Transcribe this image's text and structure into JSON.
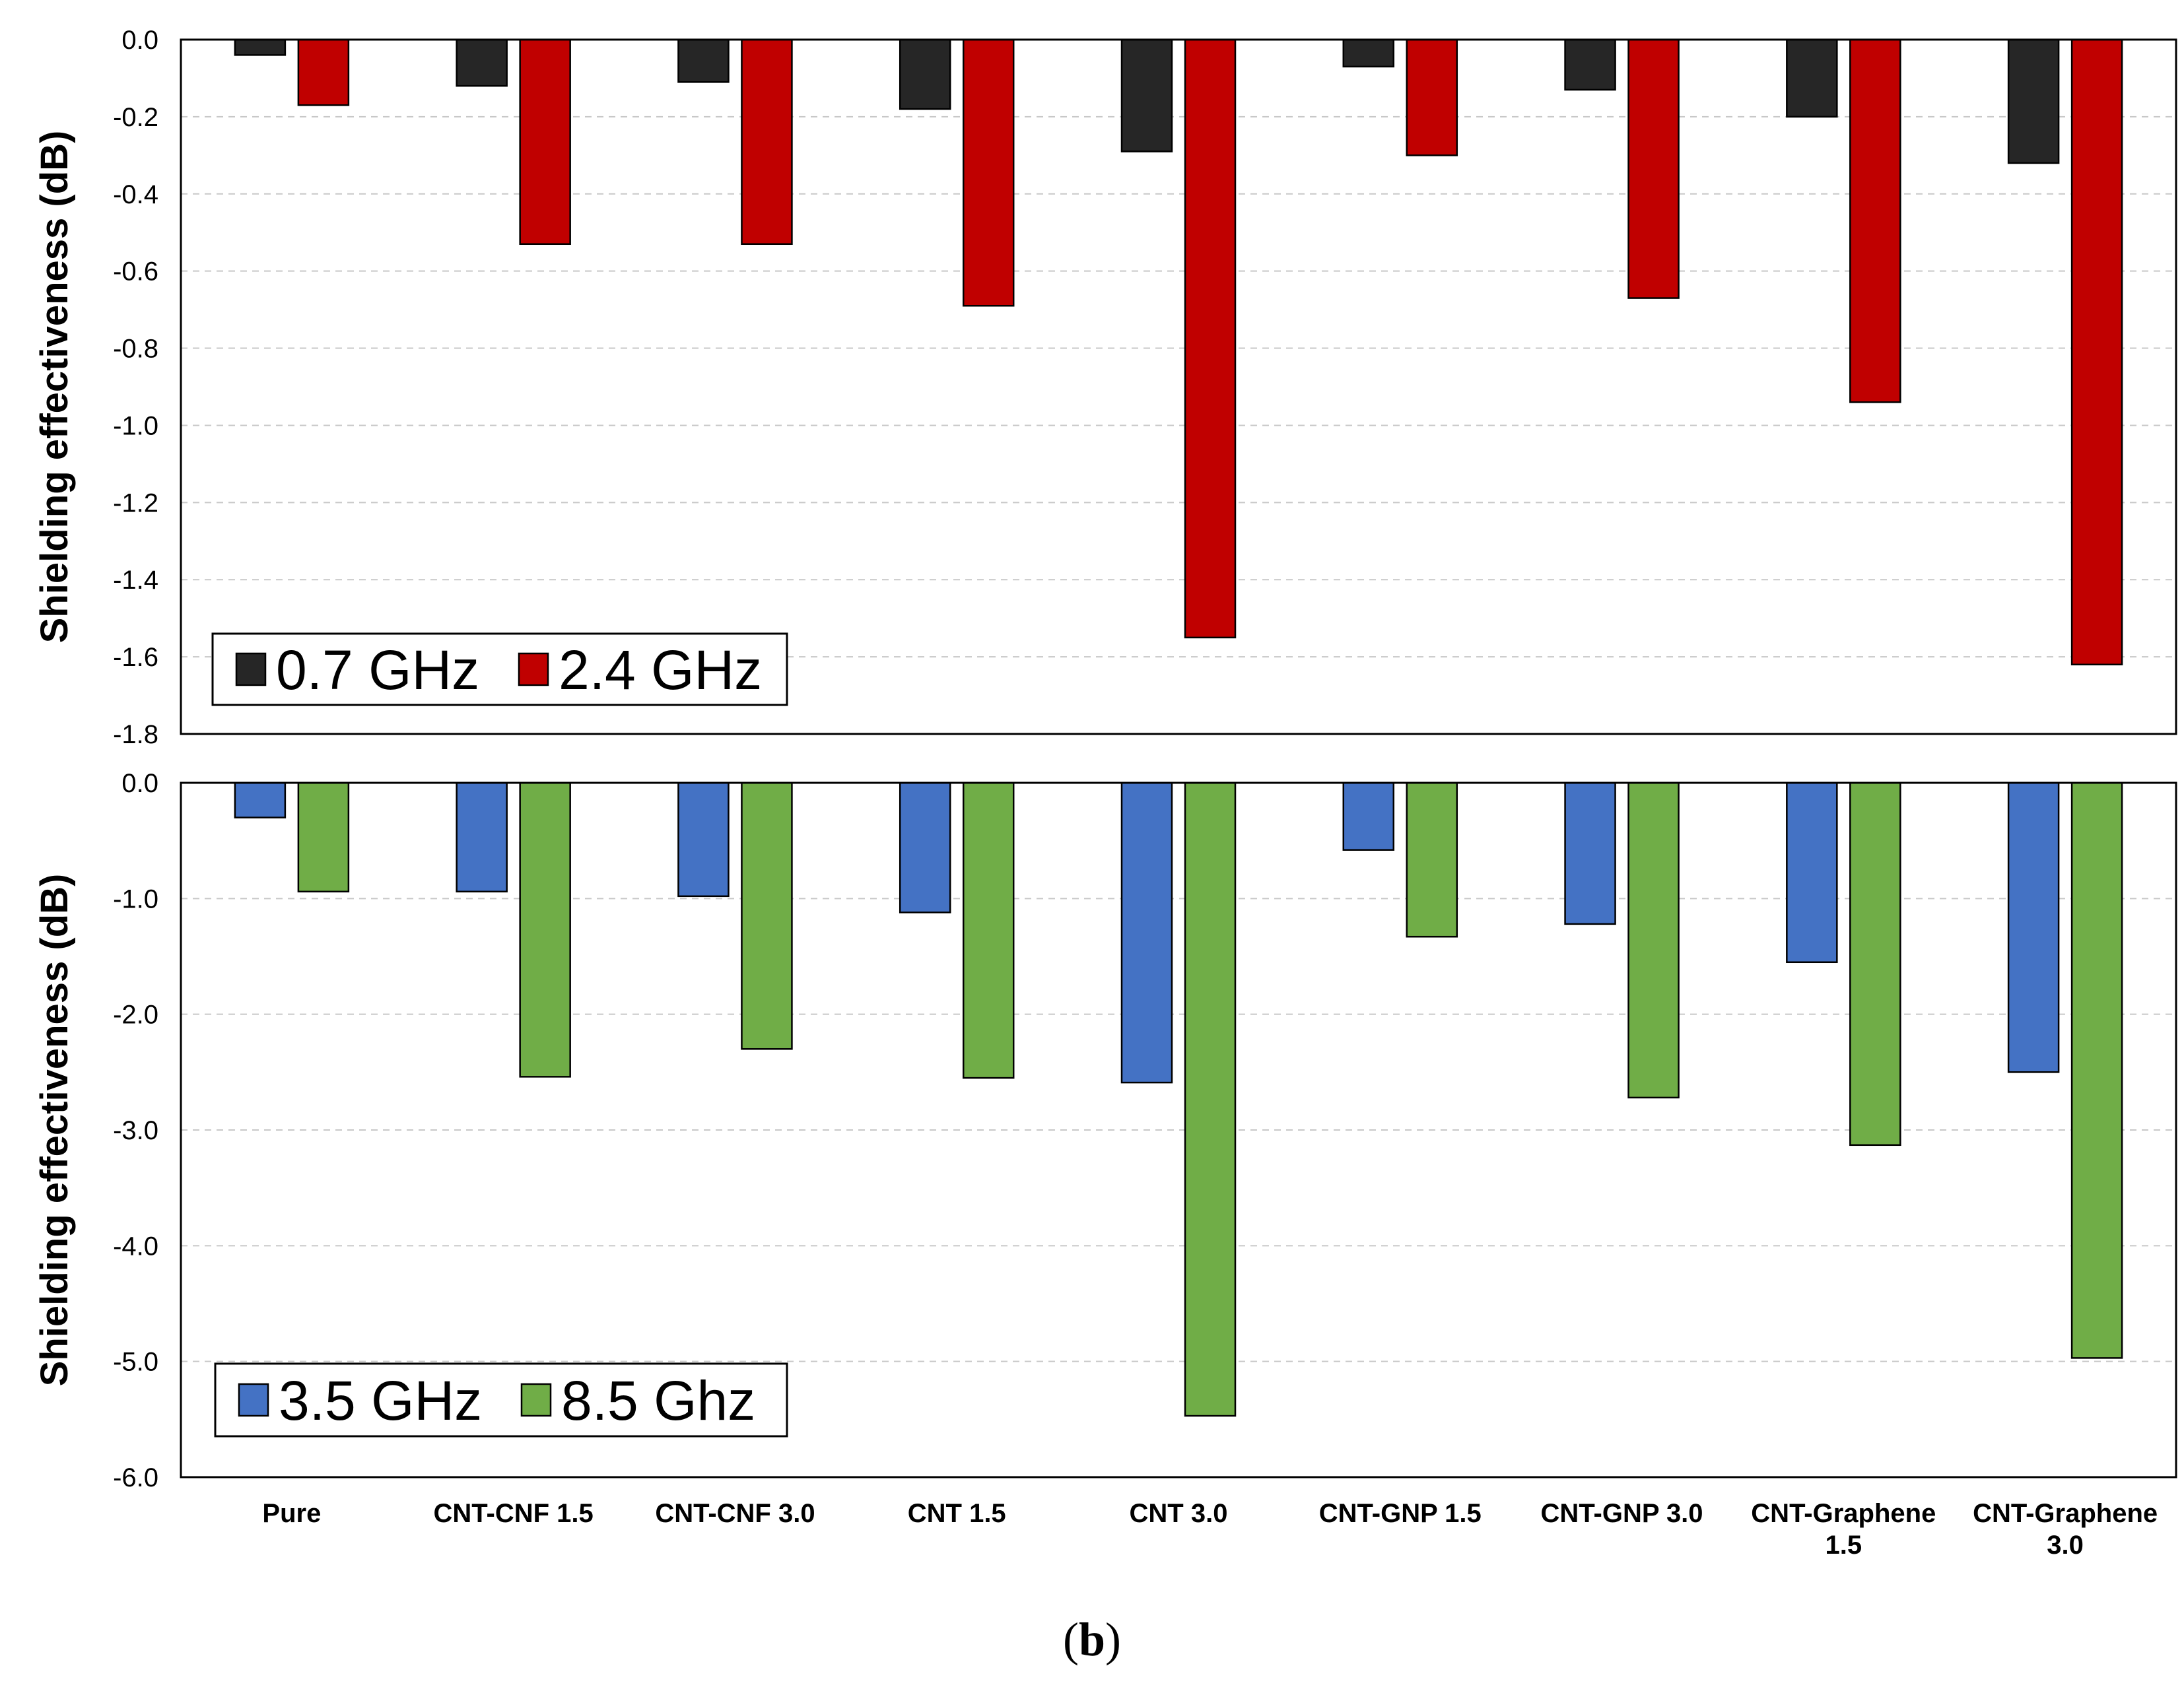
{
  "panel_label": {
    "open": "(",
    "letter": "b",
    "close": ")"
  },
  "categories": [
    [
      "Pure"
    ],
    [
      "CNT-CNF 1.5"
    ],
    [
      "CNT-CNF 3.0"
    ],
    [
      "CNT 1.5"
    ],
    [
      "CNT 3.0"
    ],
    [
      "CNT-GNP 1.5"
    ],
    [
      "CNT-GNP 3.0"
    ],
    [
      "CNT-Graphene",
      "1.5"
    ],
    [
      "CNT-Graphene",
      "3.0"
    ]
  ],
  "chart_data": [
    {
      "type": "bar",
      "ylabel": "Shielding effectiveness (dB)",
      "xlabel": "",
      "ylim": [
        -1.8,
        0.0
      ],
      "yticks": [
        "0.0",
        "-0.2",
        "-0.4",
        "-0.6",
        "-0.8",
        "-1.0",
        "-1.2",
        "-1.4",
        "-1.6",
        "-1.8"
      ],
      "grid": true,
      "legend_position": "bottom-left",
      "series": [
        {
          "name": "0.7 GHz",
          "color": "#262626",
          "values": [
            -0.04,
            -0.12,
            -0.11,
            -0.18,
            -0.29,
            -0.07,
            -0.13,
            -0.2,
            -0.32
          ]
        },
        {
          "name": "2.4 GHz",
          "color": "#C00000",
          "values": [
            -0.17,
            -0.53,
            -0.53,
            -0.69,
            -1.55,
            -0.3,
            -0.67,
            -0.94,
            -1.62
          ]
        }
      ]
    },
    {
      "type": "bar",
      "ylabel": "Shielding effectiveness (dB)",
      "xlabel": "",
      "ylim": [
        -6.0,
        0.0
      ],
      "yticks": [
        "0.0",
        "-1.0",
        "-2.0",
        "-3.0",
        "-4.0",
        "-5.0",
        "-6.0"
      ],
      "grid": true,
      "legend_position": "bottom-left",
      "series": [
        {
          "name": "3.5 GHz",
          "color": "#4472C4",
          "values": [
            -0.3,
            -0.94,
            -0.98,
            -1.12,
            -2.59,
            -0.58,
            -1.22,
            -1.55,
            -2.5
          ]
        },
        {
          "name": "8.5 Ghz",
          "color": "#70AD47",
          "values": [
            -0.94,
            -2.54,
            -2.3,
            -2.55,
            -5.47,
            -1.33,
            -2.72,
            -3.13,
            -4.97
          ]
        }
      ]
    }
  ]
}
